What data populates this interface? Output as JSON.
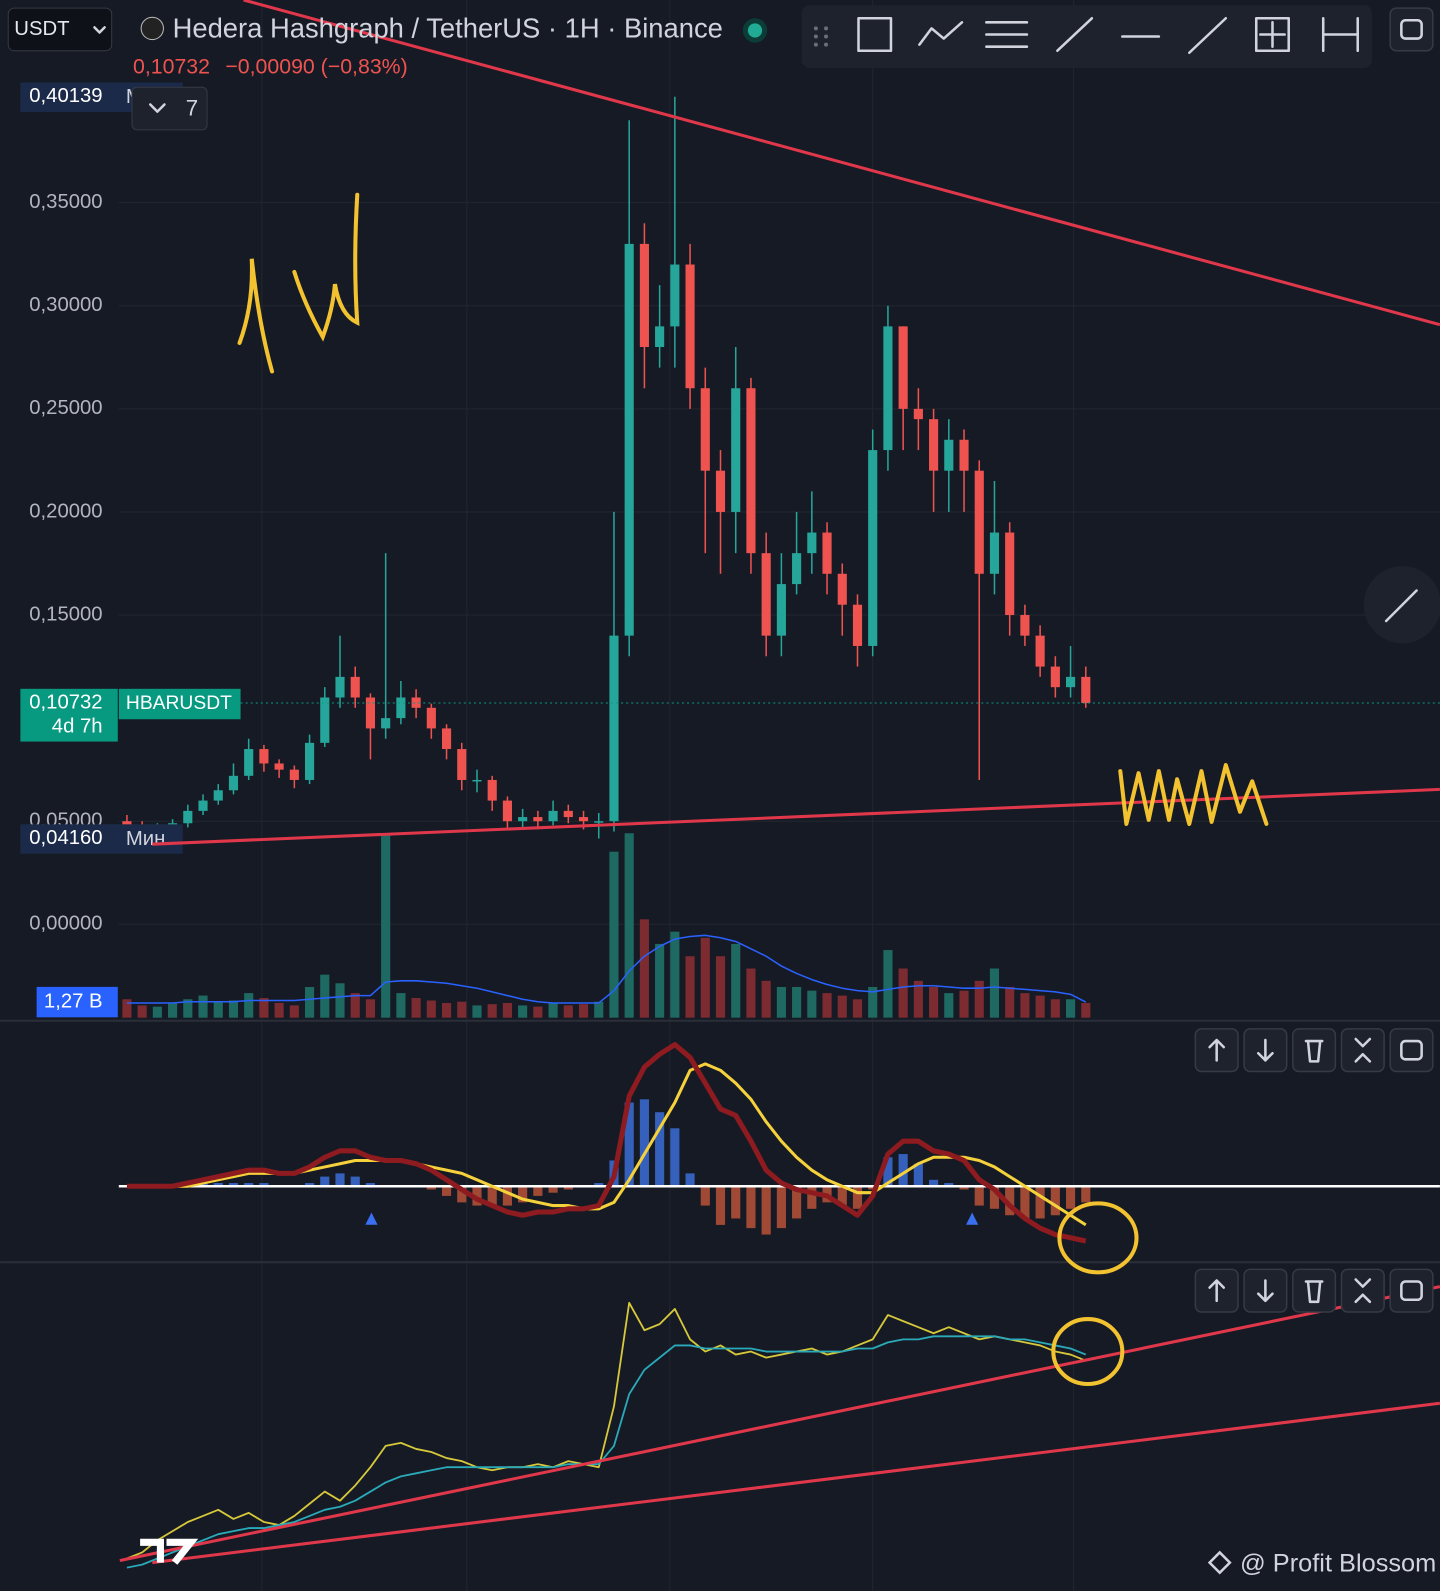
{
  "header": {
    "symbol": "USDT",
    "title": "Hedera Hashgraph / TetherUS · 1H · Binance",
    "last": "0,10732",
    "change": "−0,00090 (−0,83%)",
    "count": "7"
  },
  "chart_data": [
    {
      "type": "candlestick",
      "open": [
        0.05,
        0.048,
        0.046,
        0.047,
        0.049,
        0.055,
        0.06,
        0.065,
        0.072,
        0.085,
        0.078,
        0.075,
        0.07,
        0.088,
        0.11,
        0.12,
        0.11,
        0.095,
        0.1,
        0.11,
        0.105,
        0.095,
        0.085,
        0.07,
        0.07,
        0.06,
        0.05,
        0.052,
        0.05,
        0.055,
        0.052,
        0.05,
        0.05,
        0.14,
        0.33,
        0.28,
        0.29,
        0.32,
        0.26,
        0.22,
        0.2,
        0.26,
        0.18,
        0.14,
        0.165,
        0.18,
        0.19,
        0.17,
        0.155,
        0.135,
        0.23,
        0.29,
        0.25,
        0.245,
        0.22,
        0.235,
        0.22,
        0.17,
        0.19,
        0.15,
        0.14,
        0.125,
        0.115,
        0.12
      ],
      "high": [
        0.053,
        0.05,
        0.049,
        0.051,
        0.058,
        0.063,
        0.068,
        0.078,
        0.09,
        0.087,
        0.08,
        0.077,
        0.092,
        0.115,
        0.14,
        0.125,
        0.112,
        0.18,
        0.118,
        0.114,
        0.107,
        0.097,
        0.088,
        0.075,
        0.072,
        0.062,
        0.056,
        0.055,
        0.06,
        0.058,
        0.055,
        0.054,
        0.2,
        0.39,
        0.34,
        0.31,
        0.40139,
        0.33,
        0.27,
        0.23,
        0.28,
        0.265,
        0.19,
        0.18,
        0.2,
        0.21,
        0.195,
        0.175,
        0.16,
        0.24,
        0.3,
        0.29,
        0.26,
        0.25,
        0.245,
        0.24,
        0.225,
        0.215,
        0.195,
        0.155,
        0.145,
        0.13,
        0.135,
        0.125
      ],
      "low": [
        0.044,
        0.043,
        0.044,
        0.045,
        0.047,
        0.053,
        0.058,
        0.063,
        0.07,
        0.074,
        0.071,
        0.066,
        0.068,
        0.086,
        0.105,
        0.105,
        0.08,
        0.09,
        0.097,
        0.1,
        0.09,
        0.08,
        0.065,
        0.064,
        0.055,
        0.046,
        0.047,
        0.046,
        0.048,
        0.049,
        0.046,
        0.0416,
        0.045,
        0.13,
        0.26,
        0.27,
        0.27,
        0.25,
        0.18,
        0.17,
        0.18,
        0.17,
        0.13,
        0.13,
        0.16,
        0.17,
        0.16,
        0.14,
        0.125,
        0.13,
        0.22,
        0.23,
        0.23,
        0.2,
        0.2,
        0.2,
        0.07,
        0.16,
        0.14,
        0.135,
        0.12,
        0.11,
        0.11,
        0.105
      ],
      "close": [
        0.048,
        0.046,
        0.047,
        0.049,
        0.055,
        0.06,
        0.065,
        0.072,
        0.085,
        0.078,
        0.075,
        0.07,
        0.088,
        0.11,
        0.12,
        0.11,
        0.095,
        0.1,
        0.11,
        0.105,
        0.095,
        0.085,
        0.07,
        0.07,
        0.06,
        0.05,
        0.052,
        0.05,
        0.055,
        0.052,
        0.05,
        0.05,
        0.14,
        0.33,
        0.28,
        0.29,
        0.32,
        0.26,
        0.22,
        0.2,
        0.26,
        0.18,
        0.14,
        0.165,
        0.18,
        0.19,
        0.17,
        0.155,
        0.135,
        0.23,
        0.29,
        0.25,
        0.245,
        0.22,
        0.235,
        0.22,
        0.17,
        0.19,
        0.15,
        0.14,
        0.125,
        0.115,
        0.12,
        0.10732
      ],
      "up_color": "#26a69a",
      "down_color": "#ef5350",
      "ylim": [
        -0.0463,
        0.4483
      ],
      "yticks": [
        {
          "value": 0,
          "label": "0,00000"
        },
        {
          "value": 0.05,
          "label": "0,05000"
        },
        {
          "value": 0.15,
          "label": "0,15000"
        },
        {
          "value": 0.2,
          "label": "0,20000"
        },
        {
          "value": 0.25,
          "label": "0,25000"
        },
        {
          "value": 0.3,
          "label": "0,30000"
        },
        {
          "value": 0.35,
          "label": "0,35000"
        }
      ],
      "grid": true,
      "max_marker": {
        "value": 0.40139,
        "label": "0,40139",
        "text": "Макс."
      },
      "min_marker": {
        "value": 0.0416,
        "label": "0,04160",
        "text": "Мин."
      },
      "price_line": {
        "value": 0.10732,
        "label": "0,10732",
        "countdown": "4d 7h",
        "symbol": "HBARUSDT",
        "color": "#089981"
      }
    },
    {
      "type": "volume",
      "values": [
        1.5,
        1.0,
        0.9,
        1.2,
        1.5,
        1.8,
        1.3,
        1.4,
        2.0,
        1.6,
        1.2,
        1.0,
        2.5,
        3.5,
        2.8,
        2.0,
        1.5,
        15.0,
        2.0,
        1.6,
        1.4,
        1.2,
        1.3,
        1.0,
        1.1,
        1.2,
        1.0,
        0.9,
        1.2,
        1.0,
        1.1,
        1.3,
        13.5,
        15.0,
        8.0,
        6.0,
        7.0,
        5.0,
        6.5,
        5.0,
        6.0,
        4.0,
        3.0,
        2.5,
        2.5,
        2.2,
        2.0,
        1.8,
        1.5,
        2.5,
        5.5,
        4.0,
        3.0,
        2.5,
        2.0,
        2.2,
        3.0,
        4.0,
        2.5,
        2.0,
        1.8,
        1.5,
        1.5,
        1.2
      ],
      "ma": [
        1.2,
        1.2,
        1.2,
        1.2,
        1.3,
        1.3,
        1.3,
        1.3,
        1.4,
        1.4,
        1.4,
        1.4,
        1.5,
        1.6,
        1.7,
        1.8,
        1.8,
        2.9,
        3.0,
        3.0,
        2.9,
        2.8,
        2.6,
        2.4,
        2.1,
        1.8,
        1.5,
        1.3,
        1.2,
        1.2,
        1.2,
        1.2,
        2.2,
        3.8,
        5.0,
        5.8,
        6.4,
        6.6,
        6.7,
        6.5,
        6.2,
        5.6,
        5.0,
        4.2,
        3.6,
        3.1,
        2.7,
        2.4,
        2.2,
        2.1,
        2.3,
        2.5,
        2.6,
        2.6,
        2.5,
        2.4,
        2.4,
        2.5,
        2.4,
        2.3,
        2.2,
        2.1,
        1.9,
        1.27
      ],
      "ma_color": "#2962ff",
      "up_color": "#1e6a63",
      "down_color": "#7c2b30",
      "ylim": [
        0,
        25
      ],
      "ma_label": {
        "value": 1.27,
        "label": "1,27 B"
      }
    },
    {
      "type": "macd",
      "macd": [
        0,
        0,
        0,
        0,
        0.001,
        0.002,
        0.003,
        0.004,
        0.005,
        0.005,
        0.004,
        0.004,
        0.006,
        0.009,
        0.011,
        0.011,
        0.009,
        0.008,
        0.008,
        0.007,
        0.005,
        0.002,
        -0.001,
        -0.004,
        -0.006,
        -0.008,
        -0.009,
        -0.008,
        -0.008,
        -0.007,
        -0.007,
        -0.006,
        0.003,
        0.028,
        0.037,
        0.041,
        0.044,
        0.04,
        0.032,
        0.024,
        0.022,
        0.014,
        0.005,
        0.001,
        -0.001,
        -0.002,
        -0.003,
        -0.006,
        -0.009,
        -0.003,
        0.01,
        0.014,
        0.014,
        0.011,
        0.01,
        0.008,
        0.002,
        -0.001,
        -0.006,
        -0.01,
        -0.013,
        -0.015,
        -0.016,
        -0.017
      ],
      "signal": [
        0,
        0,
        0,
        0,
        0,
        0.001,
        0.002,
        0.003,
        0.004,
        0.004,
        0.004,
        0.004,
        0.005,
        0.006,
        0.007,
        0.008,
        0.008,
        0.008,
        0.008,
        0.007,
        0.006,
        0.005,
        0.004,
        0.002,
        0,
        -0.002,
        -0.004,
        -0.005,
        -0.006,
        -0.006,
        -0.007,
        -0.007,
        -0.005,
        0.002,
        0.01,
        0.018,
        0.026,
        0.036,
        0.038,
        0.036,
        0.032,
        0.027,
        0.02,
        0.014,
        0.009,
        0.005,
        0.002,
        0,
        -0.002,
        -0.002,
        0.001,
        0.004,
        0.007,
        0.009,
        0.009,
        0.009,
        0.008,
        0.006,
        0.003,
        0,
        -0.003,
        -0.006,
        -0.009,
        -0.012
      ],
      "histogram": [
        0,
        0,
        0,
        0,
        0.001,
        0.001,
        0.001,
        0.001,
        0.001,
        0.001,
        0,
        0,
        0.001,
        0.003,
        0.004,
        0.003,
        0.001,
        0,
        0,
        0,
        -0.001,
        -0.003,
        -0.005,
        -0.006,
        -0.006,
        -0.006,
        -0.005,
        -0.003,
        -0.002,
        -0.001,
        0,
        0.001,
        0.008,
        0.026,
        0.027,
        0.023,
        0.018,
        0.004,
        -0.006,
        -0.012,
        -0.01,
        -0.013,
        -0.015,
        -0.013,
        -0.01,
        -0.007,
        -0.005,
        -0.006,
        -0.007,
        -0.001,
        0.009,
        0.01,
        0.007,
        0.002,
        0.001,
        -0.001,
        -0.006,
        -0.007,
        -0.009,
        -0.01,
        -0.01,
        -0.009,
        -0.007,
        -0.005
      ],
      "macd_color": "#8e1b1f",
      "signal_color": "#f5d13b",
      "pos_color": "#3b6fd8",
      "neg_color": "#b8543a",
      "ylim": [
        -0.0236,
        0.0514
      ]
    },
    {
      "type": "line",
      "series": [
        {
          "color": "#d6c83a",
          "values": [
            8,
            10,
            14,
            17,
            20,
            22,
            24,
            21,
            23,
            20,
            19,
            22,
            26,
            30,
            27,
            32,
            38,
            45,
            46,
            44,
            43,
            41,
            40,
            38,
            37,
            38,
            38,
            39,
            38,
            40,
            39,
            38,
            58,
            92,
            83,
            85,
            90,
            80,
            76,
            78,
            75,
            76,
            74,
            75,
            76,
            77,
            75,
            76,
            78,
            80,
            88,
            86,
            84,
            82,
            84,
            82,
            80,
            81,
            80,
            79,
            78,
            76,
            75,
            73
          ]
        },
        {
          "color": "#2aa9b8",
          "values": [
            5,
            6,
            8,
            10,
            12,
            14,
            16,
            17,
            18,
            18,
            19,
            20,
            22,
            24,
            25,
            27,
            30,
            33,
            35,
            36,
            37,
            38,
            38,
            38,
            38,
            38,
            38,
            38,
            38,
            39,
            39,
            39,
            45,
            62,
            70,
            74,
            78,
            78,
            77,
            77,
            77,
            77,
            76,
            76,
            76,
            76,
            76,
            76,
            77,
            77,
            79,
            80,
            80,
            81,
            81,
            81,
            81,
            81,
            80,
            80,
            79,
            78,
            77,
            75
          ]
        }
      ],
      "ylim": [
        0,
        100
      ]
    }
  ],
  "watermark": "@ Profit Blossom"
}
